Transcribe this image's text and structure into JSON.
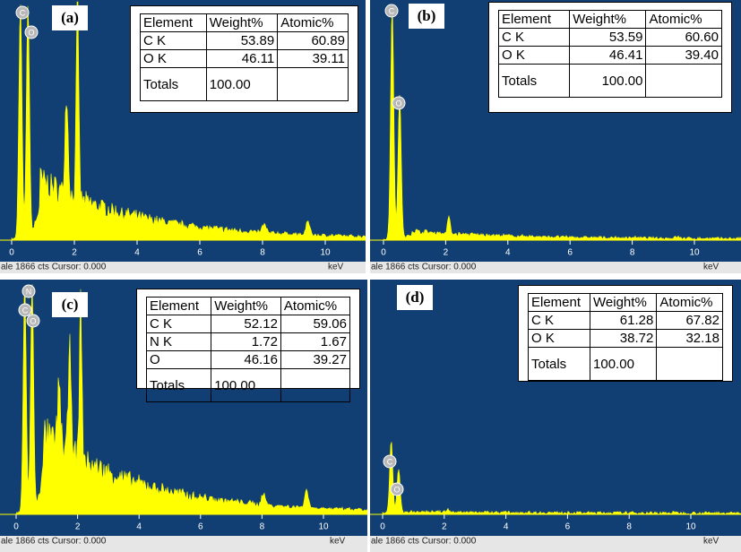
{
  "panels": [
    {
      "label": "(a)",
      "peak_labels": [
        "C",
        "O"
      ],
      "xticks": [
        0,
        2,
        4,
        6,
        8,
        10
      ],
      "status": "ale 1866 cts Cursor: 0.000",
      "unit": "keV",
      "table": {
        "header": [
          "Element",
          "Weight%",
          "Atomic%"
        ],
        "rows": [
          [
            "C K",
            "53.89",
            "60.89"
          ],
          [
            "O K",
            "46.11",
            "39.11"
          ]
        ],
        "totals": {
          "label": "Totals",
          "weight": "100.00"
        }
      }
    },
    {
      "label": "(b)",
      "peak_labels": [
        "C",
        "O"
      ],
      "xticks": [
        0,
        2,
        4,
        6,
        8,
        10
      ],
      "status": "ale 1866 cts Cursor: 0.000",
      "unit": "keV",
      "table": {
        "header": [
          "Element",
          "Weight%",
          "Atomic%"
        ],
        "rows": [
          [
            "C K",
            "53.59",
            "60.60"
          ],
          [
            "O K",
            "46.41",
            "39.40"
          ]
        ],
        "totals": {
          "label": "Totals",
          "weight": "100.00"
        }
      }
    },
    {
      "label": "(c)",
      "peak_labels": [
        "N",
        "C",
        "O"
      ],
      "xticks": [
        0,
        2,
        4,
        6,
        8,
        10
      ],
      "status": "ale 1866 cts Cursor: 0.000",
      "unit": "keV",
      "table": {
        "header": [
          "Element",
          "Weight%",
          "Atomic%"
        ],
        "rows": [
          [
            "C K",
            "52.12",
            "59.06"
          ],
          [
            "N K",
            "1.72",
            "1.67"
          ],
          [
            "O",
            "46.16",
            "39.27"
          ]
        ],
        "totals": {
          "label": "Totals",
          "weight": "100.00"
        }
      }
    },
    {
      "label": "(d)",
      "peak_labels": [
        "C",
        "O"
      ],
      "xticks": [
        0,
        2,
        4,
        6,
        8,
        10
      ],
      "status": "ale 1866 cts Cursor: 0.000",
      "unit": "keV",
      "table": {
        "header": [
          "Element",
          "Weight%",
          "Atomic%"
        ],
        "rows": [
          [
            "C K",
            "61.28",
            "67.82"
          ],
          [
            "O K",
            "38.72",
            "32.18"
          ]
        ],
        "totals": {
          "label": "Totals",
          "weight": "100.00"
        }
      }
    }
  ]
}
